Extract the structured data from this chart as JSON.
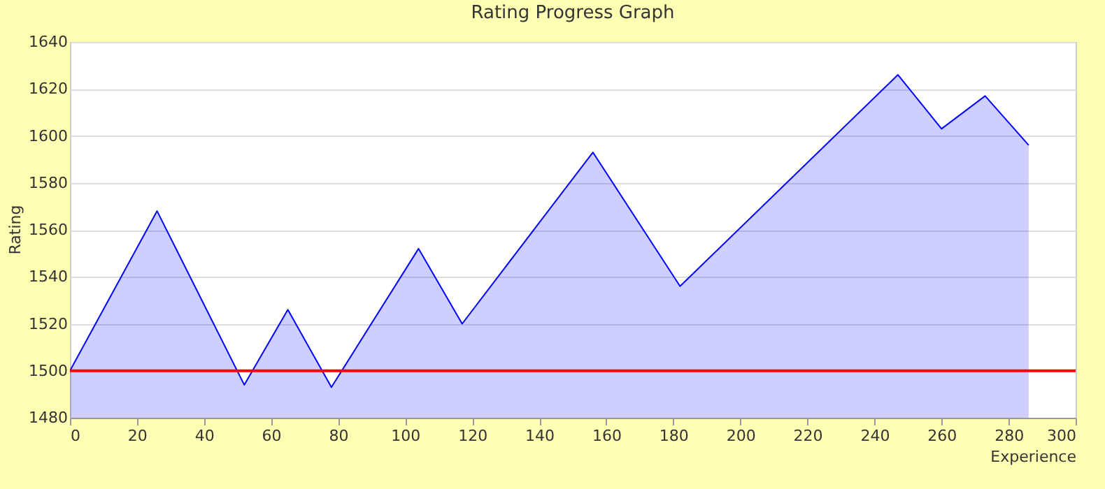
{
  "chart_data": {
    "type": "area",
    "title": "Rating Progress Graph",
    "xlabel": "Experience",
    "ylabel": "Rating",
    "x": [
      0,
      26,
      52,
      65,
      78,
      104,
      117,
      156,
      182,
      247,
      260,
      273,
      286
    ],
    "series": [
      {
        "color": "#0000ff",
        "values": [
          1500,
          1568,
          1494,
          1526,
          1493,
          1552,
          1520,
          1593,
          1536,
          1626,
          1603,
          1617,
          1596
        ]
      }
    ],
    "xlim": [
      0,
      300
    ],
    "xticks": [
      0,
      20,
      40,
      60,
      80,
      100,
      120,
      140,
      160,
      180,
      200,
      220,
      240,
      260,
      280,
      300
    ],
    "ylim": [
      1480,
      1640
    ],
    "yticks": [
      1480,
      1500,
      1520,
      1540,
      1560,
      1580,
      1600,
      1620,
      1640
    ],
    "ref_lines": [
      {
        "axis": "y",
        "value": 1500,
        "color": "#ff0000"
      }
    ],
    "grid": "y"
  }
}
